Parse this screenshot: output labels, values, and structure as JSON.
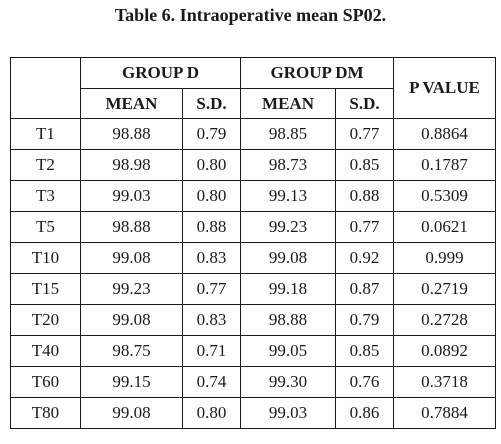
{
  "title": "Table 6. Intraoperative mean SP02.",
  "table": {
    "group_d": "GROUP D",
    "group_dm": "GROUP DM",
    "p_value": "P VALUE",
    "mean": "MEAN",
    "sd": "S.D.",
    "rows": [
      {
        "label": "T1",
        "d_mean": "98.88",
        "d_sd": "0.79",
        "dm_mean": "98.85",
        "dm_sd": "0.77",
        "p": "0.8864"
      },
      {
        "label": "T2",
        "d_mean": "98.98",
        "d_sd": "0.80",
        "dm_mean": "98.73",
        "dm_sd": "0.85",
        "p": "0.1787"
      },
      {
        "label": "T3",
        "d_mean": "99.03",
        "d_sd": "0.80",
        "dm_mean": "99.13",
        "dm_sd": "0.88",
        "p": "0.5309"
      },
      {
        "label": "T5",
        "d_mean": "98.88",
        "d_sd": "0.88",
        "dm_mean": "99.23",
        "dm_sd": "0.77",
        "p": "0.0621"
      },
      {
        "label": "T10",
        "d_mean": "99.08",
        "d_sd": "0.83",
        "dm_mean": "99.08",
        "dm_sd": "0.92",
        "p": "0.999"
      },
      {
        "label": "T15",
        "d_mean": "99.23",
        "d_sd": "0.77",
        "dm_mean": "99.18",
        "dm_sd": "0.87",
        "p": "0.2719"
      },
      {
        "label": "T20",
        "d_mean": "99.08",
        "d_sd": "0.83",
        "dm_mean": "98.88",
        "dm_sd": "0.79",
        "p": "0.2728"
      },
      {
        "label": "T40",
        "d_mean": "98.75",
        "d_sd": "0.71",
        "dm_mean": "99.05",
        "dm_sd": "0.85",
        "p": "0.0892"
      },
      {
        "label": "T60",
        "d_mean": "99.15",
        "d_sd": "0.74",
        "dm_mean": "99.30",
        "dm_sd": "0.76",
        "p": "0.3718"
      },
      {
        "label": "T80",
        "d_mean": "99.08",
        "d_sd": "0.80",
        "dm_mean": "99.03",
        "dm_sd": "0.86",
        "p": "0.7884"
      }
    ]
  }
}
